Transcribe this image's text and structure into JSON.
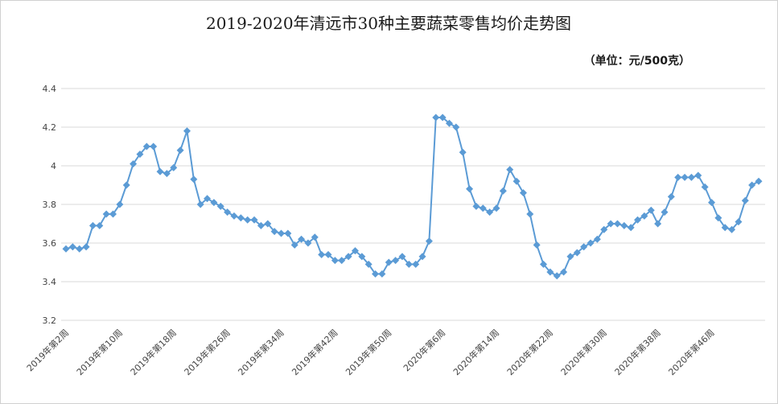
{
  "chart_data": {
    "type": "line",
    "title": "2019-2020年清远市30种主要蔬菜零售均价走势图",
    "unit_label": "（单位：元/500克）",
    "xlabel": "",
    "ylabel": "",
    "ylim": [
      3.2,
      4.4
    ],
    "yticks": [
      "3.2",
      "3.4",
      "3.6",
      "3.8",
      "4",
      "4.2",
      "4.4"
    ],
    "grid": true,
    "legend": "none",
    "line_color": "#5b9bd5",
    "x_tick_labels": [
      "2019年第2周",
      "2019年第10周",
      "2019年第18周",
      "2019年第26周",
      "2019年第34周",
      "2019年第42周",
      "2019年第50周",
      "2020年第6周",
      "2020年第14周",
      "2020年第22周",
      "2020年第30周",
      "2020年第38周",
      "2020年第46周"
    ],
    "tick_every": 8,
    "values": [
      3.57,
      3.58,
      3.57,
      3.58,
      3.69,
      3.69,
      3.75,
      3.75,
      3.8,
      3.9,
      4.01,
      4.06,
      4.1,
      4.1,
      3.97,
      3.96,
      3.99,
      4.08,
      4.18,
      3.93,
      3.8,
      3.83,
      3.81,
      3.79,
      3.76,
      3.74,
      3.73,
      3.72,
      3.72,
      3.69,
      3.7,
      3.66,
      3.65,
      3.65,
      3.59,
      3.62,
      3.6,
      3.63,
      3.54,
      3.54,
      3.51,
      3.51,
      3.53,
      3.56,
      3.53,
      3.49,
      3.44,
      3.44,
      3.5,
      3.51,
      3.53,
      3.49,
      3.49,
      3.53,
      3.61,
      4.25,
      4.25,
      4.22,
      4.2,
      4.07,
      3.88,
      3.79,
      3.78,
      3.76,
      3.78,
      3.87,
      3.98,
      3.92,
      3.86,
      3.75,
      3.59,
      3.49,
      3.45,
      3.43,
      3.45,
      3.53,
      3.55,
      3.58,
      3.6,
      3.62,
      3.67,
      3.7,
      3.7,
      3.69,
      3.68,
      3.72,
      3.74,
      3.77,
      3.7,
      3.76,
      3.84,
      3.94,
      3.94,
      3.94,
      3.95,
      3.89,
      3.81,
      3.73,
      3.68,
      3.67,
      3.71,
      3.82,
      3.9,
      3.92
    ]
  }
}
